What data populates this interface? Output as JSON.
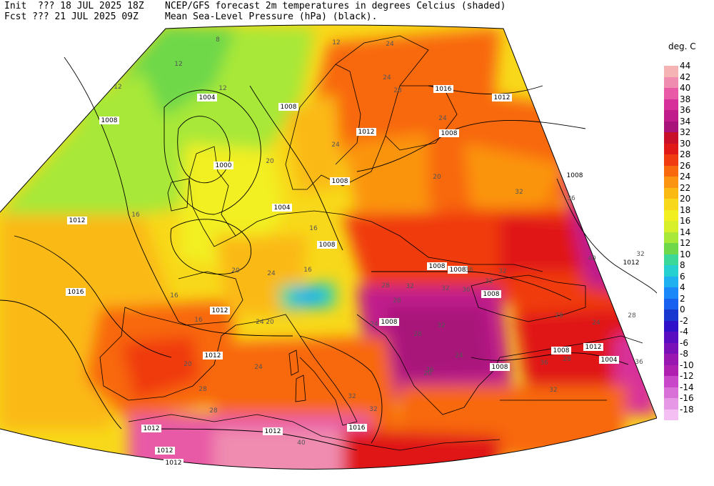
{
  "header": {
    "init": "Init  ??? 18 JUL 2025 18Z",
    "fcst": "Fcst ??? 21 JUL 2025 09Z",
    "title_line1": "NCEP/GFS forecast 2m temperatures in degrees Celcius (shaded)",
    "title_line2": "Mean Sea-Level Pressure (hPa) (black)."
  },
  "colorbar": {
    "title": "deg. C",
    "ticks": [
      "44",
      "42",
      "40",
      "38",
      "36",
      "34",
      "32",
      "30",
      "28",
      "26",
      "24",
      "22",
      "20",
      "18",
      "16",
      "14",
      "12",
      "10",
      "8",
      "6",
      "4",
      "2",
      "0",
      "-2",
      "-4",
      "-6",
      "-8",
      "-10",
      "-12",
      "-14",
      "-16",
      "-18"
    ],
    "colors": [
      "#f5b3b3",
      "#f08cb0",
      "#e85aa6",
      "#d8309a",
      "#c01c8c",
      "#a8147a",
      "#c8102a",
      "#e01818",
      "#f03a10",
      "#f8680c",
      "#fb9410",
      "#fbb914",
      "#f8d81a",
      "#f2ef20",
      "#d8f02a",
      "#a8e838",
      "#6ed84a",
      "#3cd89a",
      "#26d0d0",
      "#1fb0f0",
      "#1a88f8",
      "#1860f0",
      "#1838d0",
      "#3010c8",
      "#5a0cc0",
      "#7a10b8",
      "#9a16b0",
      "#b020b0",
      "#c846c8",
      "#d870d8",
      "#e698e6",
      "#f4c0f4"
    ]
  },
  "pressure_labels": [
    "1004",
    "1008",
    "1000",
    "1004",
    "1012",
    "1012",
    "1008",
    "1016",
    "1012",
    "1008",
    "1016",
    "1008",
    "1008",
    "1012",
    "1008",
    "1008",
    "1008",
    "1008",
    "1012",
    "1012",
    "1016",
    "1012",
    "1008",
    "1008",
    "1008",
    "1004",
    "1012",
    "1012",
    "1012",
    "1012"
  ],
  "temp_labels": [
    "8",
    "12",
    "12",
    "12",
    "12",
    "24",
    "24",
    "28",
    "24",
    "20",
    "16",
    "16",
    "16",
    "24",
    "20",
    "20",
    "16",
    "16",
    "20",
    "24",
    "28",
    "28",
    "24",
    "24",
    "28",
    "32",
    "32",
    "36",
    "32",
    "20",
    "24",
    "32",
    "36",
    "40",
    "32",
    "28",
    "24",
    "28",
    "36",
    "28",
    "32",
    "40",
    "36",
    "24",
    "20",
    "28",
    "32",
    "32",
    "28",
    "32",
    "36",
    "32",
    "36"
  ]
}
